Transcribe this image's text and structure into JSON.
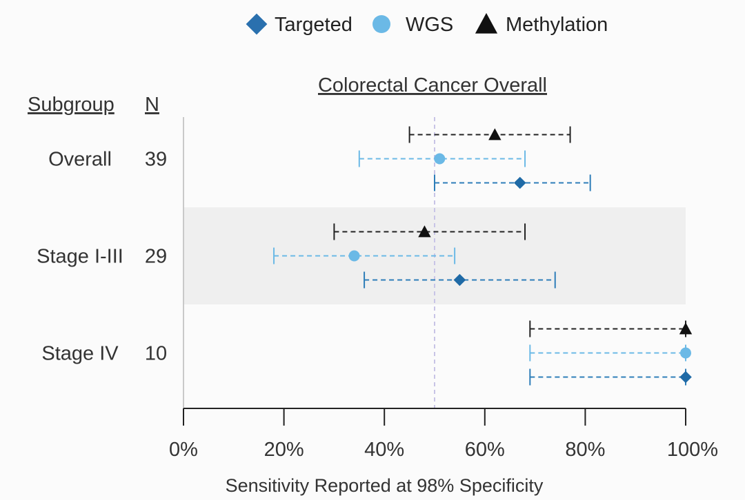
{
  "chart_data": {
    "type": "forest",
    "title": "Colorectal Cancer Overall",
    "xlabel": "Sensitivity Reported at 98% Specificity",
    "xlim": [
      0,
      100
    ],
    "xticks": [
      0,
      20,
      40,
      60,
      80,
      100
    ],
    "xtick_labels": [
      "0%",
      "20%",
      "40%",
      "60%",
      "80%",
      "100%"
    ],
    "reference_line": 50,
    "column_headers": {
      "subgroup": "Subgroup",
      "n": "N"
    },
    "legend_position": "top-center",
    "legend": [
      {
        "name": "Targeted",
        "marker": "diamond",
        "color": "#2a70ae"
      },
      {
        "name": "WGS",
        "marker": "circle",
        "color": "#6bb9e6"
      },
      {
        "name": "Methylation",
        "marker": "triangle",
        "color": "#111111"
      }
    ],
    "subgroups": [
      {
        "label": "Overall",
        "n": "39",
        "shaded": false,
        "series": [
          {
            "name": "Methylation",
            "estimate": 62,
            "lower": 45,
            "upper": 77
          },
          {
            "name": "WGS",
            "estimate": 51,
            "lower": 35,
            "upper": 68
          },
          {
            "name": "Targeted",
            "estimate": 67,
            "lower": 50,
            "upper": 81
          }
        ]
      },
      {
        "label": "Stage I-III",
        "n": "29",
        "shaded": true,
        "series": [
          {
            "name": "Methylation",
            "estimate": 48,
            "lower": 30,
            "upper": 68
          },
          {
            "name": "WGS",
            "estimate": 34,
            "lower": 18,
            "upper": 54
          },
          {
            "name": "Targeted",
            "estimate": 55,
            "lower": 36,
            "upper": 74
          }
        ]
      },
      {
        "label": "Stage IV",
        "n": "10",
        "shaded": false,
        "series": [
          {
            "name": "Methylation",
            "estimate": 100,
            "lower": 69,
            "upper": 100
          },
          {
            "name": "WGS",
            "estimate": 100,
            "lower": 69,
            "upper": 100
          },
          {
            "name": "Targeted",
            "estimate": 100,
            "lower": 69,
            "upper": 100
          }
        ]
      }
    ]
  }
}
